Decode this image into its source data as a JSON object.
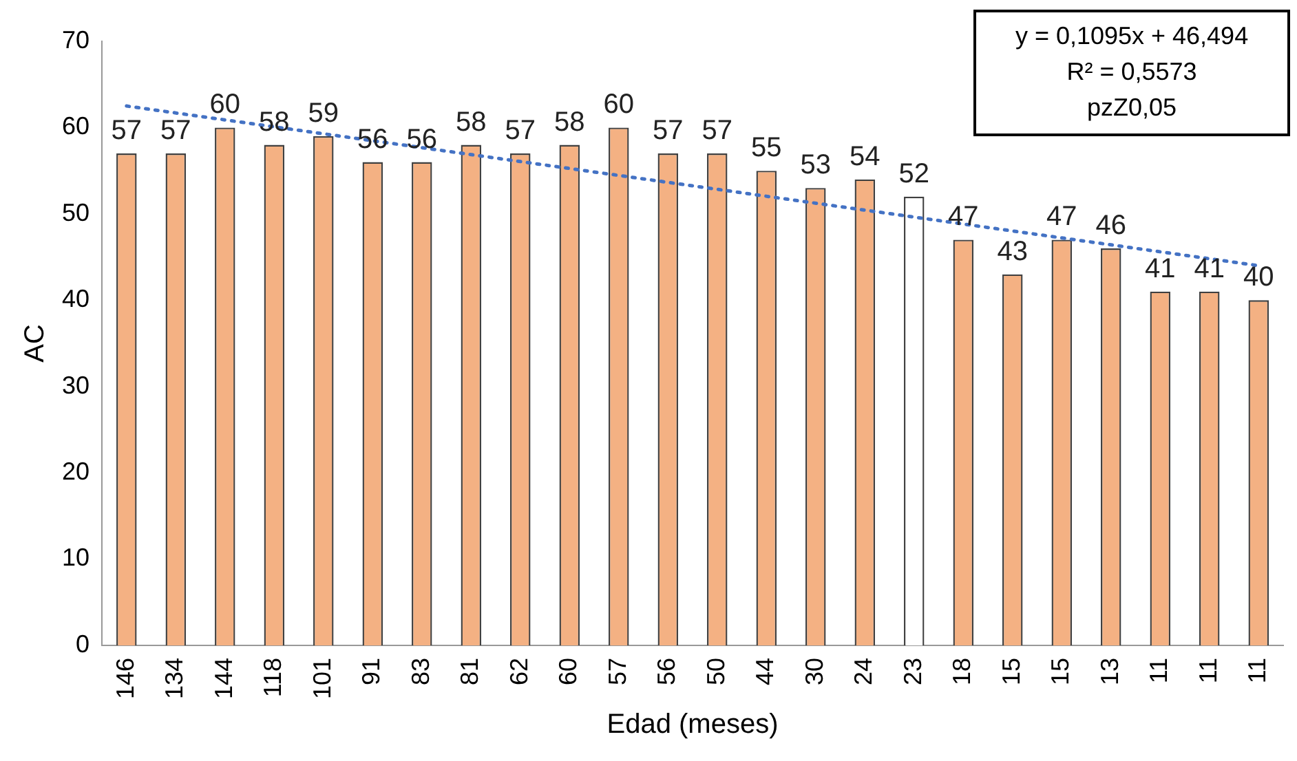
{
  "chart_data": {
    "type": "bar",
    "xlabel": "Edad (meses)",
    "ylabel": "AC",
    "categories": [
      "146",
      "134",
      "144",
      "118",
      "101",
      "91",
      "83",
      "81",
      "62",
      "60",
      "57",
      "56",
      "50",
      "44",
      "30",
      "24",
      "23",
      "18",
      "15",
      "15",
      "13",
      "11",
      "11",
      "11"
    ],
    "series": [
      {
        "colors": [
          "#f4b183",
          "#f4b183",
          "#f4b183",
          "#f4b183",
          "#f4b183",
          "#f4b183",
          "#f4b183",
          "#f4b183",
          "#f4b183",
          "#f4b183",
          "#f4b183",
          "#f4b183",
          "#f4b183",
          "#f4b183",
          "#f4b183",
          "#f4b183",
          "#ffffff",
          "#f4b183",
          "#f4b183",
          "#f4b183",
          "#f4b183",
          "#f4b183",
          "#f4b183",
          "#f4b183"
        ],
        "values": [
          57,
          57,
          60,
          58,
          59,
          56,
          56,
          58,
          57,
          58,
          60,
          57,
          57,
          55,
          53,
          54,
          52,
          47,
          43,
          47,
          46,
          41,
          41,
          40
        ],
        "value_labels": [
          "57",
          "57",
          "60",
          "58",
          "59",
          "56",
          "56",
          "58",
          "57",
          "58",
          "60",
          "57",
          "57",
          "55",
          "53",
          "54",
          "52",
          "47",
          "43",
          "47",
          "46",
          "41",
          "41",
          "40"
        ]
      },
      {
        "type": "line",
        "color": "#4472c4",
        "line_style": "dotted",
        "marker": "none",
        "values": [
          62.5,
          null,
          null,
          null,
          null,
          null,
          null,
          null,
          null,
          null,
          null,
          null,
          null,
          null,
          null,
          null,
          null,
          null,
          null,
          null,
          null,
          null,
          null,
          44
        ]
      }
    ],
    "ylim": [
      0,
      70
    ],
    "yticks": [
      0,
      10,
      20,
      30,
      40,
      50,
      60,
      70
    ],
    "grid": false,
    "legend": false,
    "annotations": [
      "y = 0,1095x + 46,494",
      "R² = 0,5573",
      "pzZ0,05"
    ]
  }
}
